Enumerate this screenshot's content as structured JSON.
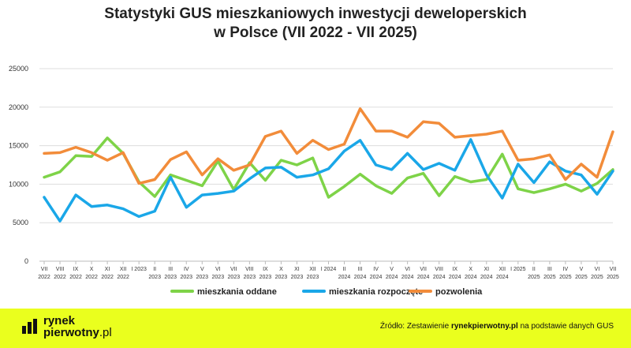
{
  "chart_data": {
    "type": "line",
    "title_line1": "Statystyki GUS mieszkaniowych inwestycji deweloperskich",
    "title_line2": "w Polsce (VII 2022 - VII 2025)",
    "ylim": [
      0,
      25000
    ],
    "yticks": [
      "0",
      "5000",
      "10000",
      "15000",
      "20000",
      "25000"
    ],
    "ytick_values": [
      0,
      5000,
      10000,
      15000,
      20000,
      25000
    ],
    "grid": true,
    "legend_position": "bottom",
    "categories": [
      {
        "m": "VII",
        "y": "2022"
      },
      {
        "m": "VIII",
        "y": "2022"
      },
      {
        "m": "IX",
        "y": "2022"
      },
      {
        "m": "X",
        "y": "2022"
      },
      {
        "m": "XI",
        "y": "2022"
      },
      {
        "m": "XII",
        "y": "2022"
      },
      {
        "m": "I 2023",
        "y": ""
      },
      {
        "m": "II",
        "y": "2023"
      },
      {
        "m": "III",
        "y": "2023"
      },
      {
        "m": "IV",
        "y": "2023"
      },
      {
        "m": "V",
        "y": "2023"
      },
      {
        "m": "VI",
        "y": "2023"
      },
      {
        "m": "VII",
        "y": "2023"
      },
      {
        "m": "VIII",
        "y": "2023"
      },
      {
        "m": "IX",
        "y": "2023"
      },
      {
        "m": "X",
        "y": "2023"
      },
      {
        "m": "XI",
        "y": "2023"
      },
      {
        "m": "XII",
        "y": "2023"
      },
      {
        "m": "I 2024",
        "y": ""
      },
      {
        "m": "II",
        "y": "2024"
      },
      {
        "m": "III",
        "y": "2024"
      },
      {
        "m": "IV",
        "y": "2024"
      },
      {
        "m": "V",
        "y": "2024"
      },
      {
        "m": "VI",
        "y": "2024"
      },
      {
        "m": "VII",
        "y": "2024"
      },
      {
        "m": "VIII",
        "y": "2024"
      },
      {
        "m": "IX",
        "y": "2024"
      },
      {
        "m": "X",
        "y": "2024"
      },
      {
        "m": "XI",
        "y": "2024"
      },
      {
        "m": "XII",
        "y": "2024"
      },
      {
        "m": "I 2025",
        "y": ""
      },
      {
        "m": "II",
        "y": "2025"
      },
      {
        "m": "III",
        "y": "2025"
      },
      {
        "m": "IV",
        "y": "2025"
      },
      {
        "m": "V",
        "y": "2025"
      },
      {
        "m": "VI",
        "y": "2025"
      },
      {
        "m": "VII",
        "y": "2025"
      }
    ],
    "series": [
      {
        "name": "mieszkania oddane",
        "color": "#7ed348",
        "values": [
          10900,
          11600,
          13700,
          13600,
          16000,
          14000,
          10300,
          8400,
          11200,
          10500,
          9800,
          13000,
          9300,
          12800,
          10500,
          13100,
          12500,
          13400,
          8300,
          9700,
          11300,
          9800,
          8800,
          10800,
          11400,
          8500,
          11000,
          10300,
          10600,
          13900,
          9400,
          8900,
          9400,
          10000,
          9100,
          10100,
          11900
        ]
      },
      {
        "name": "mieszkania rozpoczęte",
        "color": "#1aa7e8",
        "values": [
          8300,
          5200,
          8600,
          7100,
          7300,
          6800,
          5800,
          6500,
          10900,
          7000,
          8600,
          8800,
          9100,
          10700,
          12100,
          12200,
          10900,
          11200,
          12000,
          14300,
          15700,
          12500,
          11900,
          14000,
          11900,
          12700,
          11800,
          15800,
          11200,
          8200,
          12600,
          10200,
          12900,
          11700,
          11200,
          8700,
          11700
        ]
      },
      {
        "name": "pozwolenia",
        "color": "#f28c3a",
        "values": [
          14000,
          14100,
          14800,
          14100,
          13100,
          14100,
          10100,
          10600,
          13200,
          14200,
          11200,
          13300,
          11800,
          12500,
          16200,
          16900,
          14000,
          15700,
          14500,
          15200,
          19800,
          16900,
          16900,
          16100,
          18100,
          17900,
          16100,
          16300,
          16500,
          16900,
          13100,
          13300,
          13800,
          10600,
          12600,
          10900,
          16800
        ]
      }
    ]
  },
  "footer": {
    "logo_line1": "rynek",
    "logo_line2_bold": "pierwotny",
    "logo_line2_thin": ".pl",
    "source_prefix": "Źródło: Zestawienie ",
    "source_bold": "rynekpierwotny.pl",
    "source_suffix": " na podstawie danych GUS"
  },
  "colors": {
    "footer_bg": "#eaff1e",
    "grid": "#dddddd"
  }
}
